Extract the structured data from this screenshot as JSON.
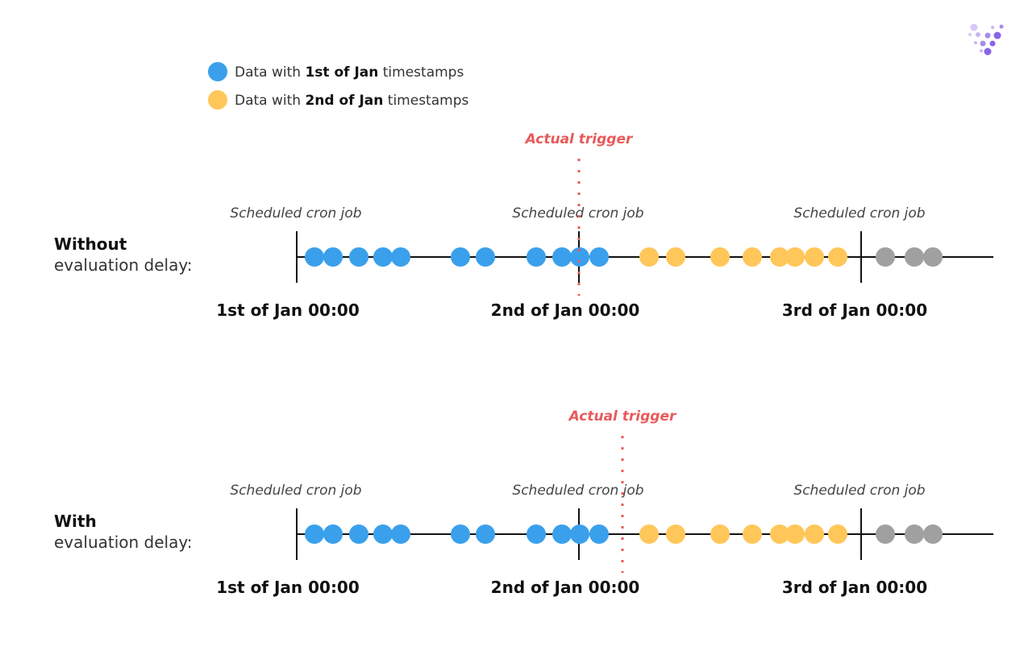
{
  "legend": [
    {
      "prefix": "Data with ",
      "bold": "1st of Jan",
      "suffix": " timestamps",
      "color": "#3aa0ec"
    },
    {
      "prefix": "Data with ",
      "bold": "2nd of Jan",
      "suffix": " timestamps",
      "color": "#ffc75a"
    }
  ],
  "colors": {
    "jan1": "#3aa0ec",
    "jan2": "#ffc75a",
    "jan3": "#a0a0a0",
    "trigger": "#e85a5a",
    "axis": "#111111"
  },
  "logo_icon": "dots-logo-icon",
  "cron_label": "Scheduled cron job",
  "trigger_label": "Actual trigger",
  "dates": [
    "1st of Jan 00:00",
    "2nd of Jan 00:00",
    "3rd of Jan 00:00"
  ],
  "rows": [
    {
      "title": "Without",
      "subtitle": "evaluation delay:",
      "trigger_after_2nd_of_jan": false
    },
    {
      "title": "With",
      "subtitle": "evaluation delay:",
      "trigger_after_2nd_of_jan": true
    }
  ]
}
